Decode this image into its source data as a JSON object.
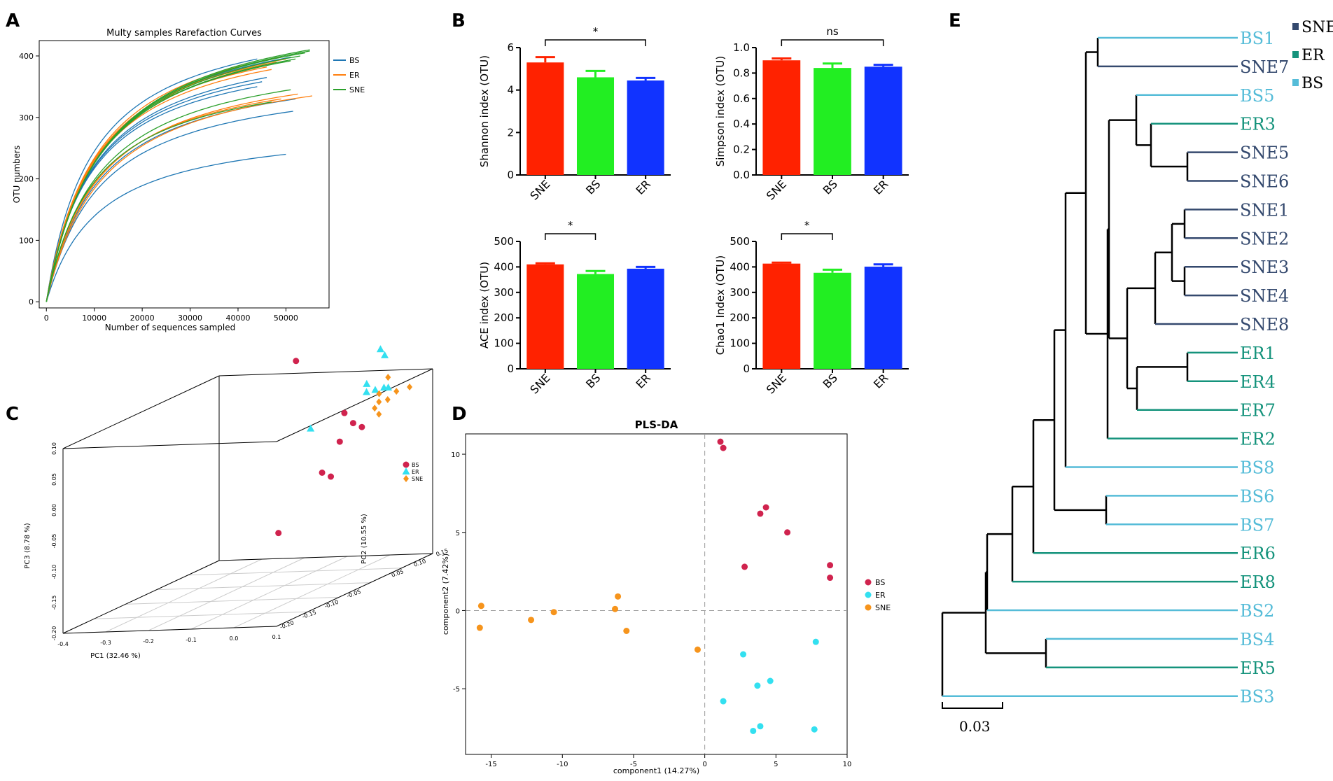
{
  "colors": {
    "BS_line": "#1f77b4",
    "ER_line": "#ff7f0e",
    "SNE_line": "#2ca02c",
    "bar_SNE": "#ff2200",
    "bar_BS": "#22ee22",
    "bar_ER": "#1133ff",
    "pt_BS": "#d0234e",
    "pt_ER": "#33e0f0",
    "pt_SNE": "#f6941c",
    "tree_SNE": "#34496e",
    "tree_ER": "#15937c",
    "tree_BS": "#55bcd8"
  },
  "panel_letters": {
    "A": "A",
    "B": "B",
    "C": "C",
    "D": "D",
    "E": "E"
  },
  "chart_data": [
    {
      "id": "A",
      "type": "line",
      "title": "Multy samples Rarefaction Curves",
      "xlabel": "Number of sequences sampled",
      "ylabel": "OTU numbers",
      "xlim": [
        -1500,
        59000
      ],
      "ylim": [
        -10,
        425
      ],
      "xticks": [
        0,
        10000,
        20000,
        30000,
        40000,
        50000
      ],
      "yticks": [
        0,
        100,
        200,
        300,
        400
      ],
      "xtick_labels": [
        "0",
        "10000",
        "20000",
        "30000",
        "40000",
        "50000"
      ],
      "ytick_labels": [
        "0",
        "100",
        "200",
        "300",
        "400"
      ],
      "legend": [
        "BS",
        "ER",
        "SNE"
      ],
      "curve_model": "OTU = asymptote * x / (k + x)",
      "series": [
        {
          "name": "BS",
          "curves": [
            [
              50000,
              240
            ],
            [
              51500,
              310
            ],
            [
              52000,
              330
            ],
            [
              51000,
              398
            ],
            [
              45000,
              358
            ],
            [
              44000,
              350
            ],
            [
              46000,
              365
            ],
            [
              44000,
              395
            ]
          ]
        },
        {
          "name": "ER",
          "curves": [
            [
              49000,
              398
            ],
            [
              55500,
              335
            ],
            [
              52500,
              338
            ],
            [
              49000,
              330
            ],
            [
              50000,
              395
            ],
            [
              46000,
              382
            ],
            [
              47000,
              378
            ],
            [
              48000,
              390
            ]
          ]
        },
        {
          "name": "SNE",
          "curves": [
            [
              55000,
              410
            ],
            [
              54000,
              405
            ],
            [
              53000,
              400
            ],
            [
              52000,
              395
            ],
            [
              51000,
              392
            ],
            [
              51000,
              345
            ],
            [
              47000,
              325
            ],
            [
              55000,
              408
            ]
          ]
        }
      ]
    },
    {
      "id": "B1",
      "type": "bar",
      "categories": [
        "SNE",
        "BS",
        "ER"
      ],
      "values": [
        5.3,
        4.6,
        4.45
      ],
      "errors": [
        0.25,
        0.3,
        0.12
      ],
      "ylabel": "Shannon index (OTU)",
      "ylim": [
        0,
        6
      ],
      "yticks": [
        0,
        2,
        4,
        6
      ],
      "ytick_labels": [
        "0",
        "2",
        "4",
        "6"
      ],
      "sig": {
        "from": 0,
        "to": 2,
        "label": "*"
      }
    },
    {
      "id": "B2",
      "type": "bar",
      "categories": [
        "SNE",
        "BS",
        "ER"
      ],
      "values": [
        0.9,
        0.84,
        0.85
      ],
      "errors": [
        0.015,
        0.035,
        0.015
      ],
      "ylabel": "Simpson index (OTU)",
      "ylim": [
        0,
        1.0
      ],
      "yticks": [
        0,
        0.2,
        0.4,
        0.6,
        0.8,
        1.0
      ],
      "ytick_labels": [
        "0.0",
        "0.2",
        "0.4",
        "0.6",
        "0.8",
        "1.0"
      ],
      "sig": {
        "from": 0,
        "to": 2,
        "label": "ns"
      }
    },
    {
      "id": "B3",
      "type": "bar",
      "categories": [
        "SNE",
        "BS",
        "ER"
      ],
      "values": [
        410,
        372,
        393
      ],
      "errors": [
        4,
        12,
        7
      ],
      "ylabel": "ACE index (OTU)",
      "ylim": [
        0,
        500
      ],
      "yticks": [
        0,
        100,
        200,
        300,
        400,
        500
      ],
      "ytick_labels": [
        "0",
        "100",
        "200",
        "300",
        "400",
        "500"
      ],
      "sig": {
        "from": 0,
        "to": 1,
        "label": "*"
      }
    },
    {
      "id": "B4",
      "type": "bar",
      "categories": [
        "SNE",
        "BS",
        "ER"
      ],
      "values": [
        413,
        377,
        401
      ],
      "errors": [
        4,
        12,
        9
      ],
      "ylabel": "Chao1 Index (OTU)",
      "ylim": [
        0,
        500
      ],
      "yticks": [
        0,
        100,
        200,
        300,
        400,
        500
      ],
      "ytick_labels": [
        "0",
        "100",
        "200",
        "300",
        "400",
        "500"
      ],
      "sig": {
        "from": 0,
        "to": 1,
        "label": "*"
      }
    },
    {
      "id": "C",
      "type": "scatter3d",
      "xlabel": "PC1 (32.46 %)",
      "ylabel": "PC2 (10.55 %)",
      "zlabel": "PC3 (8.78 %)",
      "xticks": [
        -0.4,
        -0.3,
        -0.2,
        -0.1,
        0.0,
        0.1
      ],
      "xtick_labels": [
        "-0.4",
        "-0.3",
        "-0.2",
        "-0.1",
        "0.0",
        "0.1"
      ],
      "yticks": [
        -0.2,
        -0.15,
        -0.1,
        -0.05,
        0.05,
        0.1,
        0.15
      ],
      "ytick_labels": [
        "-0.20",
        "-0.15",
        "-0.10",
        "-0.05",
        "0.05",
        "0.10",
        "0.15"
      ],
      "zticks": [
        -0.2,
        -0.15,
        -0.1,
        -0.05,
        0.0,
        0.05,
        0.1
      ],
      "ztick_labels": [
        "-0.20",
        "-0.15",
        "-0.10",
        "-0.05",
        "0.00",
        "0.05",
        "0.10"
      ],
      "legend": [
        "BS",
        "ER",
        "SNE"
      ],
      "series": [
        {
          "name": "BS",
          "marker": "circle",
          "points": [
            [
              -0.22,
              0.15,
              0.12
            ],
            [
              0.05,
              0.0,
              0.08
            ],
            [
              0.06,
              0.01,
              0.06
            ],
            [
              0.07,
              0.02,
              0.05
            ],
            [
              0.06,
              -0.02,
              0.04
            ],
            [
              0.05,
              -0.05,
              0.0
            ],
            [
              0.06,
              -0.04,
              -0.01
            ],
            [
              0.0,
              -0.1,
              -0.08
            ]
          ]
        },
        {
          "name": "ER",
          "marker": "triangle",
          "points": [
            [
              0.03,
              0.1,
              0.15
            ],
            [
              0.04,
              0.1,
              0.14
            ],
            [
              0.05,
              0.05,
              0.11
            ],
            [
              0.06,
              0.04,
              0.1
            ],
            [
              0.07,
              0.05,
              0.1
            ],
            [
              0.08,
              0.06,
              0.1
            ],
            [
              0.09,
              0.06,
              0.1
            ],
            [
              -0.05,
              0.02,
              0.05
            ]
          ]
        },
        {
          "name": "SNE",
          "marker": "diamond",
          "points": [
            [
              0.1,
              0.05,
              0.12
            ],
            [
              0.1,
              0.03,
              0.1
            ],
            [
              0.11,
              0.02,
              0.09
            ],
            [
              0.12,
              0.03,
              0.09
            ],
            [
              0.13,
              0.04,
              0.1
            ],
            [
              0.14,
              0.06,
              0.1
            ],
            [
              0.1,
              0.02,
              0.08
            ],
            [
              0.11,
              0.02,
              0.07
            ]
          ]
        }
      ]
    },
    {
      "id": "D",
      "type": "scatter",
      "title": "PLS-DA",
      "xlabel": "component1 (14.27%)",
      "ylabel": "component2 (7.42%)",
      "xlim": [
        -16.8,
        10
      ],
      "ylim": [
        -9.2,
        11.3
      ],
      "xticks": [
        -15,
        -10,
        -5,
        0,
        5,
        10
      ],
      "xtick_labels": [
        "-15",
        "-10",
        "-5",
        "0",
        "5",
        "10"
      ],
      "yticks": [
        -5,
        0,
        5,
        10
      ],
      "ytick_labels": [
        "-5",
        "0",
        "5",
        "10"
      ],
      "legend": [
        "BS",
        "ER",
        "SNE"
      ],
      "series": [
        {
          "name": "BS",
          "points": [
            [
              1.1,
              10.8
            ],
            [
              1.3,
              10.4
            ],
            [
              4.3,
              6.6
            ],
            [
              3.9,
              6.2
            ],
            [
              5.8,
              5.0
            ],
            [
              2.8,
              2.8
            ],
            [
              8.8,
              2.9
            ],
            [
              8.8,
              2.1
            ]
          ]
        },
        {
          "name": "ER",
          "points": [
            [
              7.8,
              -2.0
            ],
            [
              2.7,
              -2.8
            ],
            [
              4.6,
              -4.5
            ],
            [
              3.7,
              -4.8
            ],
            [
              1.3,
              -5.8
            ],
            [
              3.9,
              -7.4
            ],
            [
              3.4,
              -7.7
            ],
            [
              7.7,
              -7.6
            ]
          ]
        },
        {
          "name": "SNE",
          "points": [
            [
              -15.7,
              0.3
            ],
            [
              -15.8,
              -1.1
            ],
            [
              -12.2,
              -0.6
            ],
            [
              -10.6,
              -0.1
            ],
            [
              -6.3,
              0.1
            ],
            [
              -6.1,
              0.9
            ],
            [
              -5.5,
              -1.3
            ],
            [
              -0.5,
              -2.5
            ]
          ]
        }
      ]
    },
    {
      "id": "E",
      "type": "dendrogram",
      "scale_label": "0.03",
      "legend": [
        "SNE",
        "ER",
        "BS"
      ],
      "leaves": [
        {
          "label": "BS1",
          "group": "BS"
        },
        {
          "label": "SNE7",
          "group": "SNE"
        },
        {
          "label": "BS5",
          "group": "BS"
        },
        {
          "label": "ER3",
          "group": "ER"
        },
        {
          "label": "SNE5",
          "group": "SNE"
        },
        {
          "label": "SNE6",
          "group": "SNE"
        },
        {
          "label": "SNE1",
          "group": "SNE"
        },
        {
          "label": "SNE2",
          "group": "SNE"
        },
        {
          "label": "SNE3",
          "group": "SNE"
        },
        {
          "label": "SNE4",
          "group": "SNE"
        },
        {
          "label": "SNE8",
          "group": "SNE"
        },
        {
          "label": "ER1",
          "group": "ER"
        },
        {
          "label": "ER4",
          "group": "ER"
        },
        {
          "label": "ER7",
          "group": "ER"
        },
        {
          "label": "ER2",
          "group": "ER"
        },
        {
          "label": "BS8",
          "group": "BS"
        },
        {
          "label": "BS6",
          "group": "BS"
        },
        {
          "label": "BS7",
          "group": "BS"
        },
        {
          "label": "ER6",
          "group": "ER"
        },
        {
          "label": "ER8",
          "group": "ER"
        },
        {
          "label": "BS2",
          "group": "BS"
        },
        {
          "label": "BS4",
          "group": "BS"
        },
        {
          "label": "ER5",
          "group": "ER"
        },
        {
          "label": "BS3",
          "group": "BS"
        }
      ]
    }
  ]
}
